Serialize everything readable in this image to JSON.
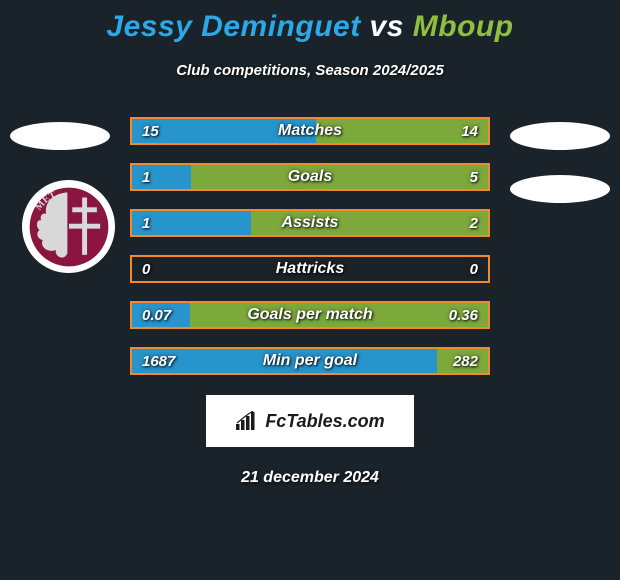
{
  "background_color": "#1a2329",
  "title": {
    "full": "Jessy Deminguet vs Mboup",
    "player1": "Jessy Deminguet",
    "vs": "vs",
    "player2": "Mboup",
    "color_player1": "#2aa8e8",
    "color_vs": "#ffffff",
    "color_player2": "#8fbf3f",
    "fontsize": 30
  },
  "subtitle": "Club competitions, Season 2024/2025",
  "subtitle_color": "#ffffff",
  "subtitle_fontsize": 15,
  "player_left": {
    "club_label": "METZ",
    "club_primary": "#8a1640",
    "club_secondary": "#d8d8d8"
  },
  "stats": {
    "border_color": "#f08a2a",
    "bar_left_color": "#2aa8e8",
    "bar_right_color": "#8fbf3f",
    "label_color": "#ffffff",
    "value_color": "#ffffff",
    "rows": [
      {
        "label": "Matches",
        "left_val": "15",
        "right_val": "14",
        "left_pct": 51.7,
        "right_pct": 48.3
      },
      {
        "label": "Goals",
        "left_val": "1",
        "right_val": "5",
        "left_pct": 16.7,
        "right_pct": 83.3
      },
      {
        "label": "Assists",
        "left_val": "1",
        "right_val": "2",
        "left_pct": 33.3,
        "right_pct": 66.7
      },
      {
        "label": "Hattricks",
        "left_val": "0",
        "right_val": "0",
        "left_pct": 0,
        "right_pct": 0
      },
      {
        "label": "Goals per match",
        "left_val": "0.07",
        "right_val": "0.36",
        "left_pct": 16.3,
        "right_pct": 83.7
      },
      {
        "label": "Min per goal",
        "left_val": "1687",
        "right_val": "282",
        "left_pct": 85.7,
        "right_pct": 14.3
      }
    ]
  },
  "branding": {
    "text": "FcTables.com",
    "bg": "#ffffff",
    "text_color": "#1b1b1b",
    "icon_color": "#1b1b1b"
  },
  "date": "21 december 2024"
}
